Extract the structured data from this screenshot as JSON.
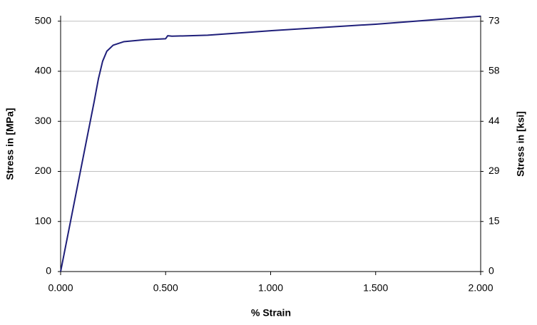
{
  "chart_data": {
    "type": "line",
    "y_label": "Stress in [MPa]",
    "y2_label": "Stress in  [ksi]",
    "x_label": "% Strain",
    "x": [
      0,
      0.04,
      0.08,
      0.12,
      0.16,
      0.18,
      0.2,
      0.22,
      0.25,
      0.3,
      0.4,
      0.5,
      0.51,
      0.53,
      0.7,
      1.0,
      1.5,
      2.0
    ],
    "series": [
      {
        "color": "#1f1f7a",
        "values": [
          0,
          85,
          170,
          255,
          340,
          385,
          420,
          440,
          452,
          459,
          463,
          465,
          471,
          470,
          472,
          481,
          494,
          510
        ]
      }
    ],
    "xlim": [
      0,
      2
    ],
    "xticks": [
      {
        "value": 0,
        "label": "0.000"
      },
      {
        "value": 0.5,
        "label": "0.500"
      },
      {
        "value": 1,
        "label": "1.000"
      },
      {
        "value": 1.5,
        "label": "1.500"
      },
      {
        "value": 2,
        "label": "2.000"
      }
    ],
    "ylim": [
      0,
      511
    ],
    "yticks": [
      0,
      100,
      200,
      300,
      400,
      500
    ],
    "y2lim": [
      0,
      74.1
    ],
    "y2ticks": [
      0,
      {
        "value": 14.5,
        "label": "15"
      },
      29,
      {
        "value": 43.5,
        "label": "44"
      },
      58,
      {
        "value": 72.5,
        "label": "73"
      }
    ],
    "grid": true
  }
}
